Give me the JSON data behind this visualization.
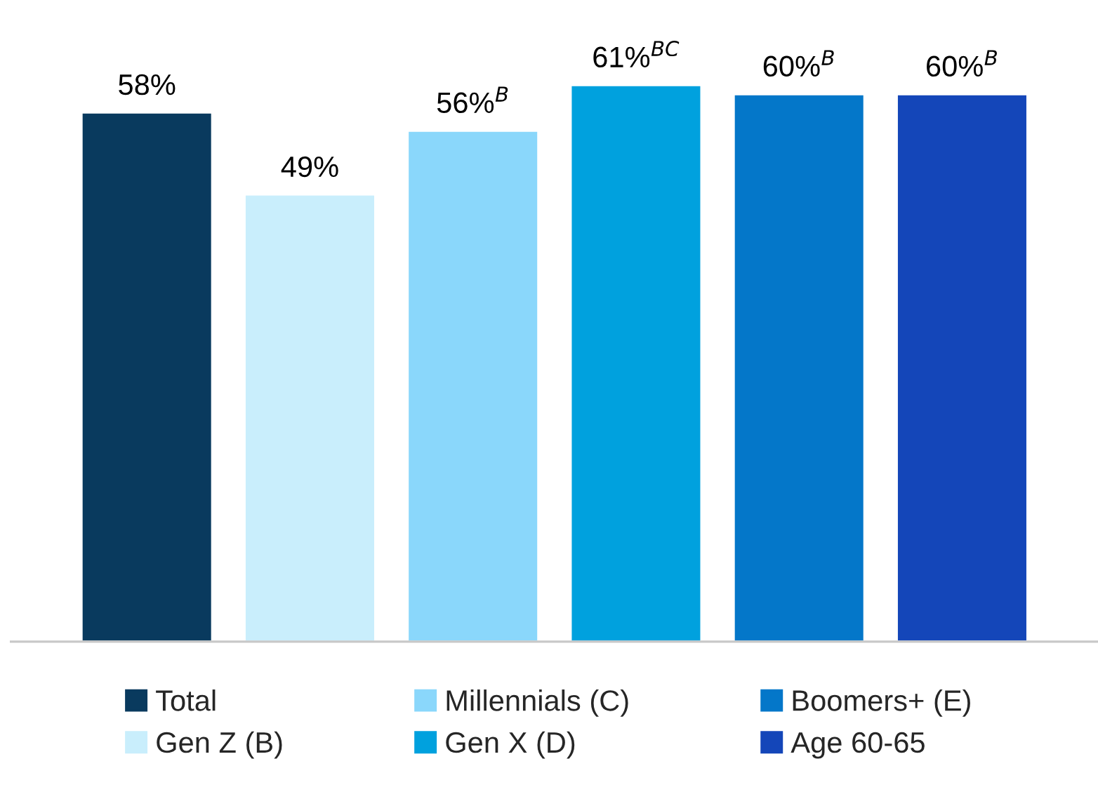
{
  "chart_data": {
    "type": "bar",
    "categories": [
      null
    ],
    "series": [
      {
        "name": "Total",
        "color": "#093a5e",
        "values": [
          58
        ],
        "value_labels": [
          "58%"
        ]
      },
      {
        "name": "Gen Z (B)",
        "color": "#c9eefc",
        "values": [
          49
        ],
        "value_labels": [
          "49%"
        ]
      },
      {
        "name": "Millennials (C)",
        "color": "#8ad7fb",
        "values": [
          56
        ],
        "value_labels": [
          "56%$^{B}$"
        ]
      },
      {
        "name": "Gen X (D)",
        "color": "#00a1de",
        "values": [
          61
        ],
        "value_labels": [
          "61%$^{BC}$"
        ]
      },
      {
        "name": "Boomers+ (E)",
        "color": "#0477c9",
        "values": [
          60
        ],
        "value_labels": [
          "60%$^{B}$"
        ]
      },
      {
        "name": "Age 60-65",
        "color": "#1446b9",
        "values": [
          60
        ],
        "value_labels": [
          "60%$^{B}$"
        ]
      }
    ],
    "legend": "bottom",
    "grid": false
  }
}
